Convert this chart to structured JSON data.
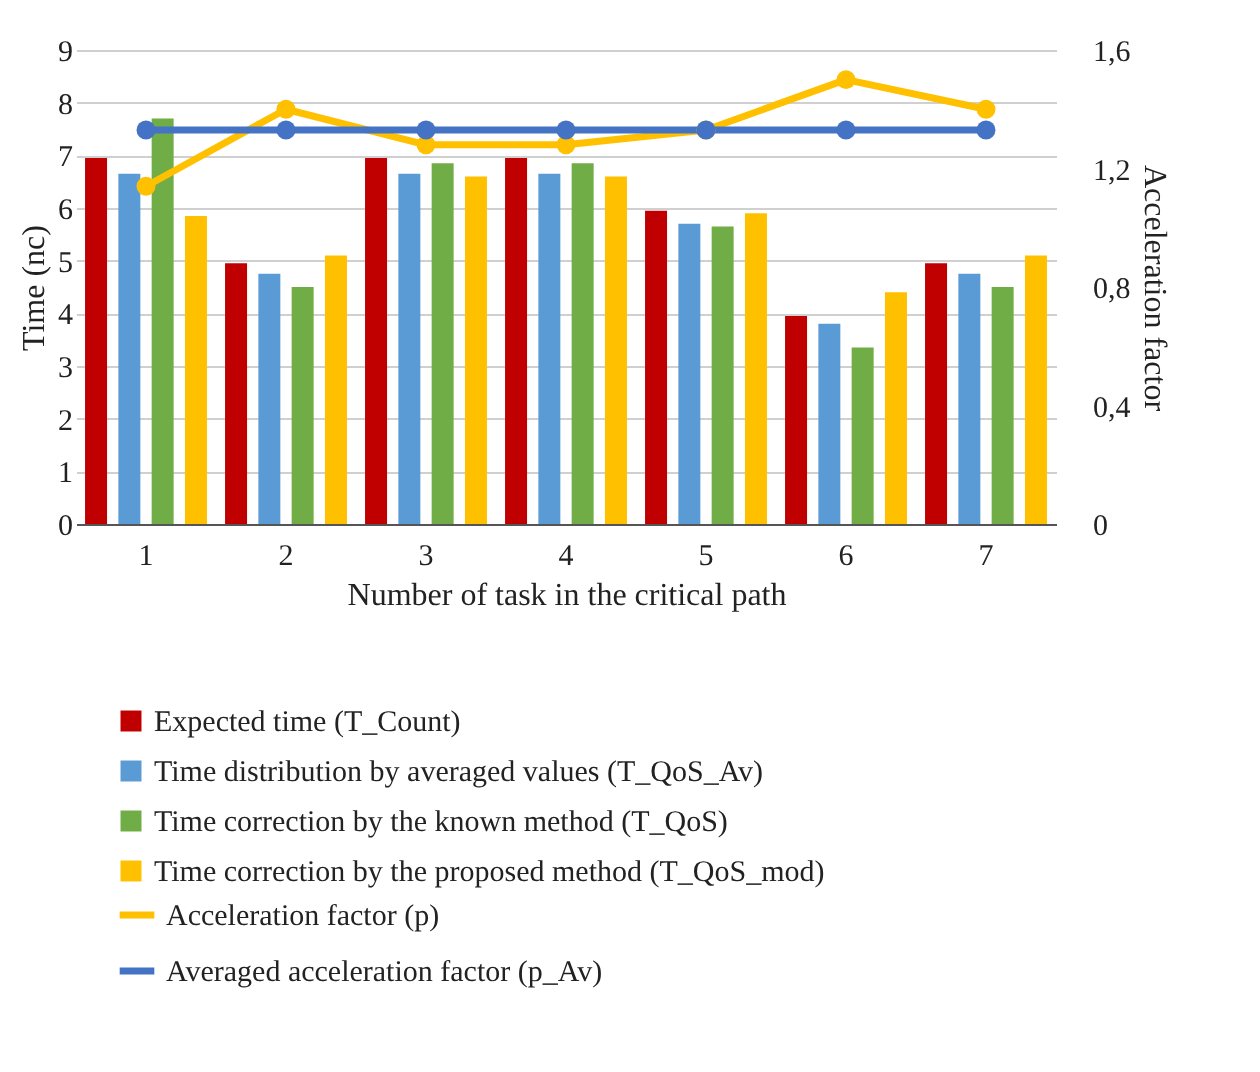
{
  "chart_data": {
    "type": "bar",
    "xlabel": "Number of task in the critical path",
    "ylabel": "Time (nc)",
    "y2label": "Acceleration factor",
    "categories": [
      "1",
      "2",
      "3",
      "4",
      "5",
      "6",
      "7"
    ],
    "series": [
      {
        "name": "Expected time (T_Count)",
        "color": "#c00000",
        "values": [
          6.95,
          4.95,
          6.95,
          6.95,
          5.95,
          3.95,
          4.95
        ]
      },
      {
        "name": "Time distribution by averaged values (T_QoS_Av)",
        "color": "#5b9bd5",
        "values": [
          6.65,
          4.75,
          6.65,
          6.65,
          5.7,
          3.8,
          4.75
        ]
      },
      {
        "name": "Time correction by the known method (T_QoS)",
        "color": "#70ad47",
        "values": [
          7.7,
          4.5,
          6.85,
          6.85,
          5.65,
          3.35,
          4.5
        ]
      },
      {
        "name": "Time correction by the proposed method (T_QoS_mod)",
        "color": "#ffc000",
        "values": [
          5.85,
          5.1,
          6.6,
          6.6,
          5.9,
          4.4,
          5.1
        ]
      },
      {
        "name": "Acceleration factor (p)",
        "color": "#ffc000",
        "type": "line",
        "axis": "y2",
        "values": [
          1.14,
          1.4,
          1.28,
          1.28,
          1.33,
          1.5,
          1.4
        ]
      },
      {
        "name": "Averaged acceleration factor (p_Av)",
        "color": "#4472c4",
        "type": "line",
        "axis": "y2",
        "values": [
          1.33,
          1.33,
          1.33,
          1.33,
          1.33,
          1.33,
          1.33
        ]
      }
    ],
    "ylim": [
      0,
      9
    ],
    "yticks": [
      0,
      1,
      2,
      3,
      4,
      5,
      6,
      7,
      8,
      9
    ],
    "y2lim": [
      0,
      1.6
    ],
    "y2ticks": [
      0,
      {
        "value": 0.4,
        "label": "0,4"
      },
      {
        "value": 0.8,
        "label": "0,8"
      },
      {
        "value": 1.2,
        "label": "1,2"
      },
      {
        "value": 1.6,
        "label": "1,6"
      }
    ],
    "grid": "y",
    "legend": "bottom",
    "marker": "circle",
    "line_style": "solid"
  }
}
